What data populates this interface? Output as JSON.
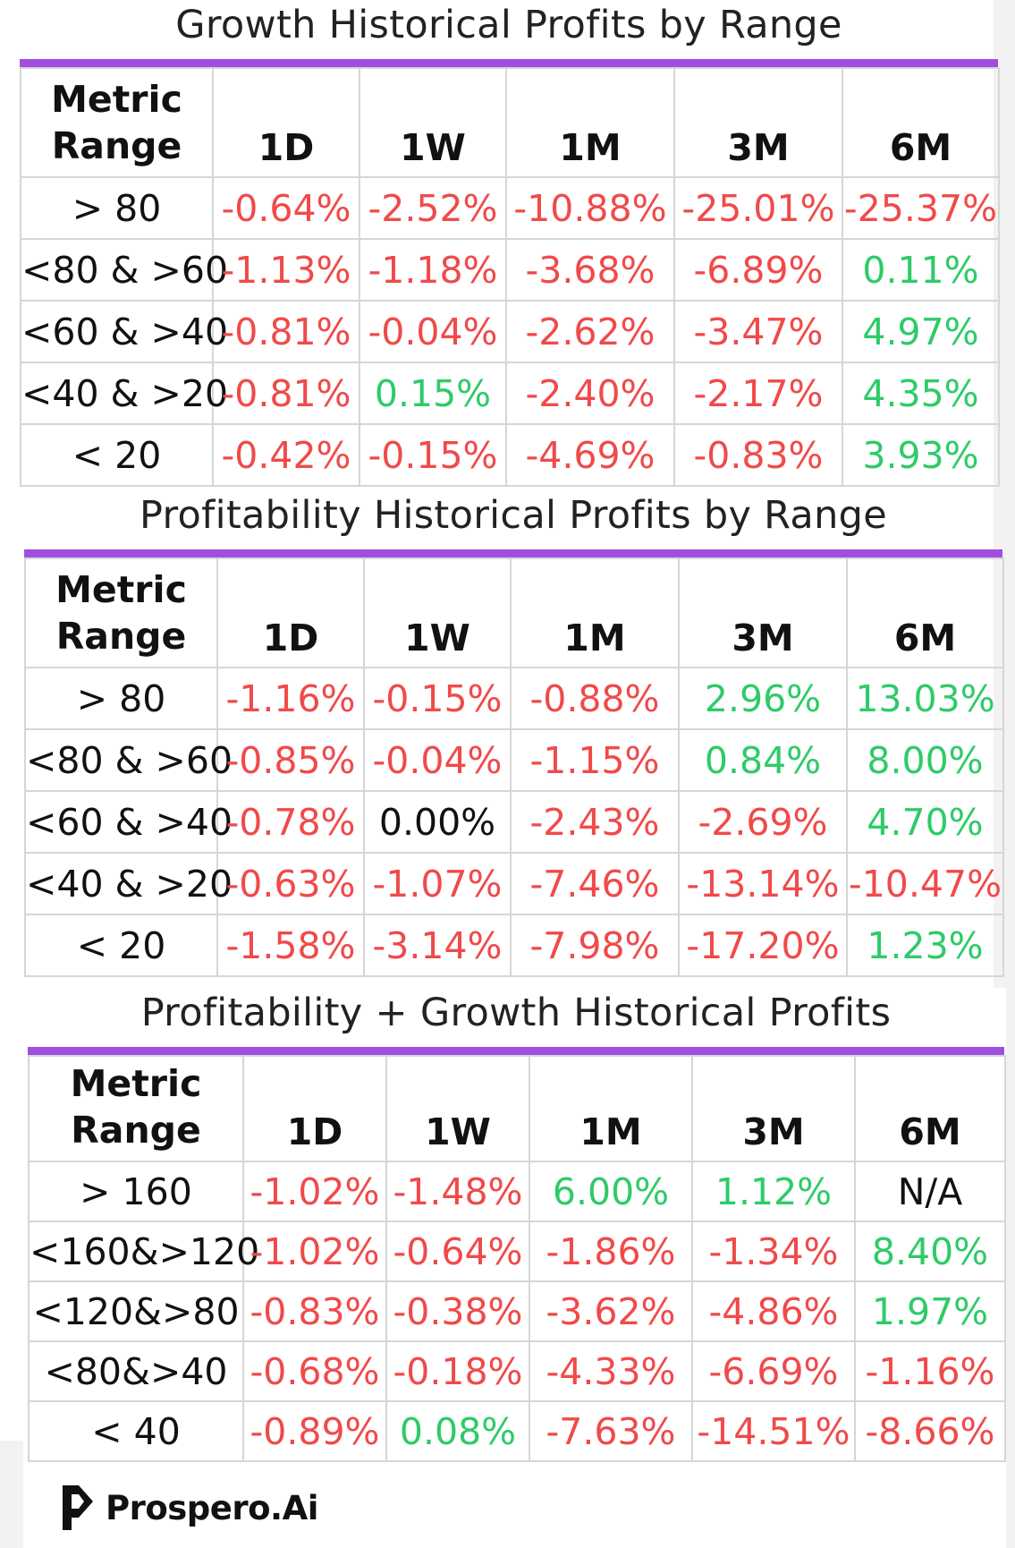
{
  "tables": [
    {
      "title": "Growth Historical Profits by Range",
      "header": [
        "Metric Range",
        "1D",
        "1W",
        "1M",
        "3M",
        "6M"
      ],
      "rows": [
        {
          "range": "> 80",
          "values": [
            "-0.64%",
            "-2.52%",
            "-10.88%",
            "-25.01%",
            "-25.37%"
          ]
        },
        {
          "range": "<80 & >60",
          "values": [
            "-1.13%",
            "-1.18%",
            "-3.68%",
            "-6.89%",
            "0.11%"
          ]
        },
        {
          "range": "<60 & >40",
          "values": [
            "-0.81%",
            "-0.04%",
            "-2.62%",
            "-3.47%",
            "4.97%"
          ]
        },
        {
          "range": "<40 & >20",
          "values": [
            "-0.81%",
            "0.15%",
            "-2.40%",
            "-2.17%",
            "4.35%"
          ]
        },
        {
          "range": "< 20",
          "values": [
            "-0.42%",
            "-0.15%",
            "-4.69%",
            "-0.83%",
            "3.93%"
          ]
        }
      ]
    },
    {
      "title": "Profitability Historical Profits by Range",
      "header": [
        "Metric Range",
        "1D",
        "1W",
        "1M",
        "3M",
        "6M"
      ],
      "rows": [
        {
          "range": "> 80",
          "values": [
            "-1.16%",
            "-0.15%",
            "-0.88%",
            "2.96%",
            "13.03%"
          ]
        },
        {
          "range": "<80 & >60",
          "values": [
            "-0.85%",
            "-0.04%",
            "-1.15%",
            "0.84%",
            "8.00%"
          ]
        },
        {
          "range": "<60 & >40",
          "values": [
            "-0.78%",
            "0.00%",
            "-2.43%",
            "-2.69%",
            "4.70%"
          ]
        },
        {
          "range": "<40 & >20",
          "values": [
            "-0.63%",
            "-1.07%",
            "-7.46%",
            "-13.14%",
            "-10.47%"
          ]
        },
        {
          "range": "< 20",
          "values": [
            "-1.58%",
            "-3.14%",
            "-7.98%",
            "-17.20%",
            "1.23%"
          ]
        }
      ]
    },
    {
      "title": "Profitability + Growth Historical Profits",
      "header": [
        "Metric Range",
        "1D",
        "1W",
        "1M",
        "3M",
        "6M"
      ],
      "rows": [
        {
          "range": "> 160",
          "values": [
            "-1.02%",
            "-1.48%",
            "6.00%",
            "1.12%",
            "N/A"
          ]
        },
        {
          "range": "<160&>120",
          "values": [
            "-1.02%",
            "-0.64%",
            "-1.86%",
            "-1.34%",
            "8.40%"
          ]
        },
        {
          "range": "<120&>80",
          "values": [
            "-0.83%",
            "-0.38%",
            "-3.62%",
            "-4.86%",
            "1.97%"
          ]
        },
        {
          "range": "<80&>40",
          "values": [
            "-0.68%",
            "-0.18%",
            "-4.33%",
            "-6.69%",
            "-1.16%"
          ]
        },
        {
          "range": "< 40",
          "values": [
            "-0.89%",
            "0.08%",
            "-7.63%",
            "-14.51%",
            "-8.66%"
          ]
        }
      ]
    }
  ],
  "colors": {
    "negative": "#f04a4a",
    "positive": "#2ecb68",
    "neutral": "#111111",
    "accent": "#a04ee0"
  },
  "brand": {
    "logo_text": "Prospero.Ai",
    "logo_icon": "prospero-logo-icon"
  }
}
